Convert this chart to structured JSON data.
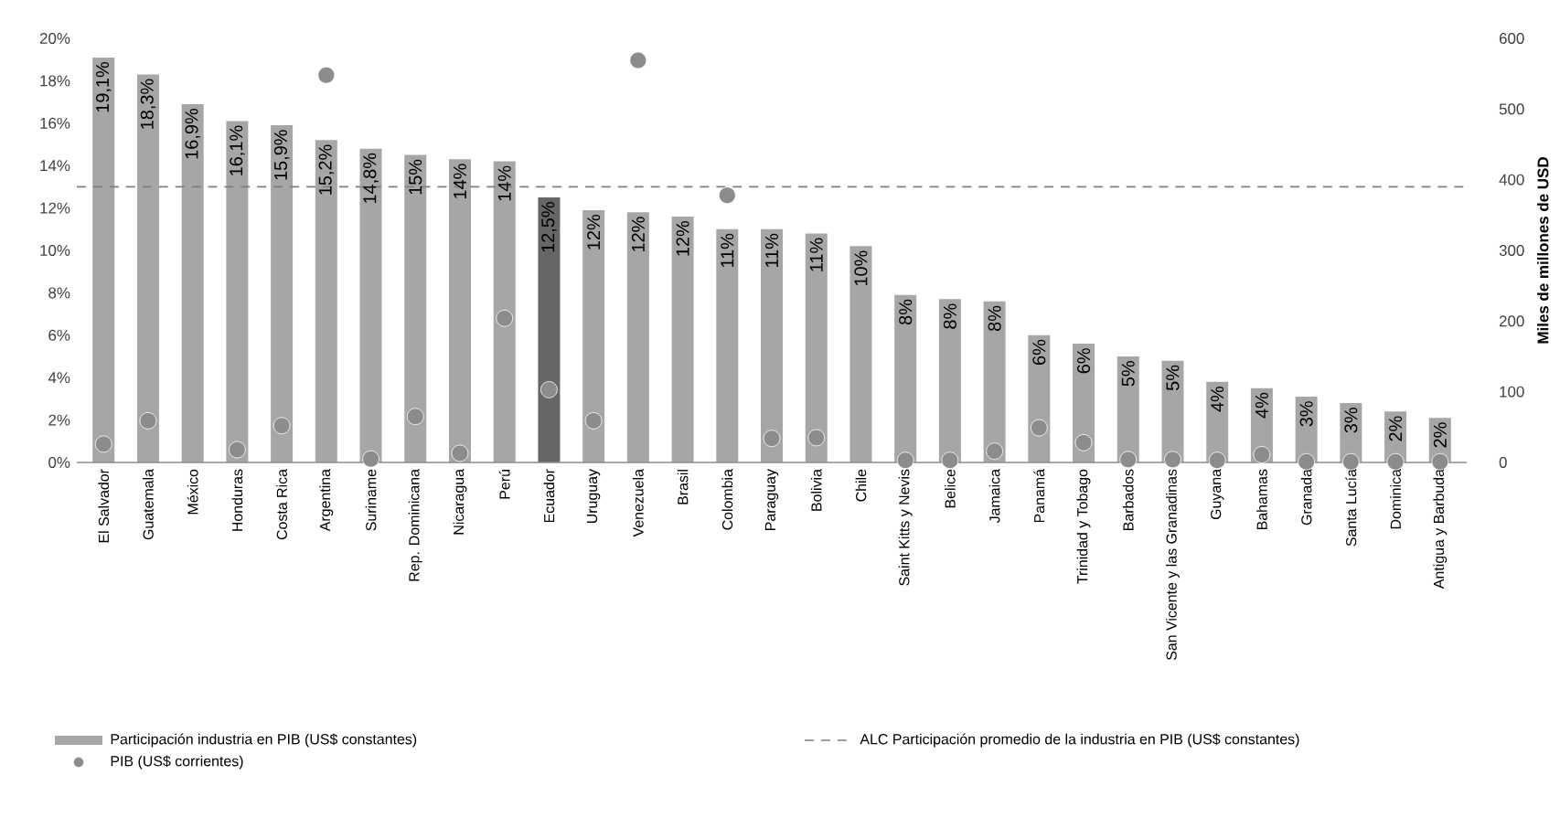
{
  "chart_data": {
    "type": "bar",
    "y2label": "Miles de millones de USD",
    "categories": [
      "El Salvador",
      "Guatemala",
      "México",
      "Honduras",
      "Costa Rica",
      "Argentina",
      "Suriname",
      "Rep. Dominicana",
      "Nicaragua",
      "Perú",
      "Ecuador",
      "Uruguay",
      "Venezuela",
      "Brasil",
      "Colombia",
      "Paraguay",
      "Bolivia",
      "Chile",
      "Saint Kitts y Nevis",
      "Belice",
      "Jamaica",
      "Panamá",
      "Trinidad y Tobago",
      "Barbados",
      "San Vicente y las Granadinas",
      "Guyana",
      "Bahamas",
      "Granada",
      "Santa Lucía",
      "Dominica",
      "Antigua y Barbuda"
    ],
    "series": [
      {
        "name": "Participación industria en PIB (US$ constantes)",
        "color": "#a6a6a6",
        "colors": [
          "#a6a6a6",
          "#a6a6a6",
          "#a6a6a6",
          "#a6a6a6",
          "#a6a6a6",
          "#a6a6a6",
          "#a6a6a6",
          "#a6a6a6",
          "#a6a6a6",
          "#a6a6a6",
          "#666666",
          "#a6a6a6",
          "#a6a6a6",
          "#a6a6a6",
          "#a6a6a6",
          "#a6a6a6",
          "#a6a6a6",
          "#a6a6a6",
          "#a6a6a6",
          "#a6a6a6",
          "#a6a6a6",
          "#a6a6a6",
          "#a6a6a6",
          "#a6a6a6",
          "#a6a6a6",
          "#a6a6a6",
          "#a6a6a6",
          "#a6a6a6",
          "#a6a6a6",
          "#a6a6a6",
          "#a6a6a6"
        ],
        "values": [
          19.1,
          18.3,
          16.9,
          16.1,
          15.9,
          15.2,
          14.8,
          14.5,
          14.3,
          14.2,
          12.5,
          11.9,
          11.8,
          11.6,
          11.0,
          11.0,
          10.8,
          10.2,
          7.9,
          7.7,
          7.6,
          6.0,
          5.6,
          5.0,
          4.8,
          3.8,
          3.5,
          3.1,
          2.8,
          2.4,
          2.1
        ],
        "value_labels": [
          "19,1%",
          "18,3%",
          "16,9%",
          "16,1%",
          "15,9%",
          "15,2%",
          "14,8%",
          "15%",
          "14%",
          "14%",
          "12,5%",
          "12%",
          "12%",
          "12%",
          "11%",
          "11%",
          "11%",
          "10%",
          "8%",
          "8%",
          "8%",
          "6%",
          "6%",
          "5%",
          "5%",
          "4%",
          "4%",
          "3%",
          "3%",
          "2%",
          "2%"
        ]
      },
      {
        "name": "PIB (US$ corrientes)",
        "type": "scatter",
        "axis": "y2",
        "marker": "circle",
        "color": "#8c8c8c",
        "values": [
          26,
          59,
          null,
          18,
          52,
          548,
          5,
          65,
          13,
          204,
          103,
          59,
          569,
          null,
          378,
          34,
          35,
          null,
          3,
          3,
          16,
          49,
          28,
          4,
          4,
          3,
          11,
          1,
          1,
          1,
          1
        ]
      }
    ],
    "ref_lines": [
      {
        "axis": "y",
        "value": 13,
        "label": "ALC Participación promedio de la industria en PIB (US$ constantes)",
        "color": "#7f7f7f",
        "line_style": "dashed"
      }
    ],
    "ylim": [
      0,
      20
    ],
    "yticks": [
      {
        "value": 0,
        "label": "0%"
      },
      {
        "value": 2,
        "label": "2%"
      },
      {
        "value": 4,
        "label": "4%"
      },
      {
        "value": 6,
        "label": "6%"
      },
      {
        "value": 8,
        "label": "8%"
      },
      {
        "value": 10,
        "label": "10%"
      },
      {
        "value": 12,
        "label": "12%"
      },
      {
        "value": 14,
        "label": "14%"
      },
      {
        "value": 16,
        "label": "16%"
      },
      {
        "value": 18,
        "label": "18%"
      },
      {
        "value": 20,
        "label": "20%"
      }
    ],
    "y2lim": [
      0,
      600
    ],
    "y2ticks": [
      0,
      100,
      200,
      300,
      400,
      500,
      600
    ],
    "grid": false,
    "legend": "bottom"
  }
}
